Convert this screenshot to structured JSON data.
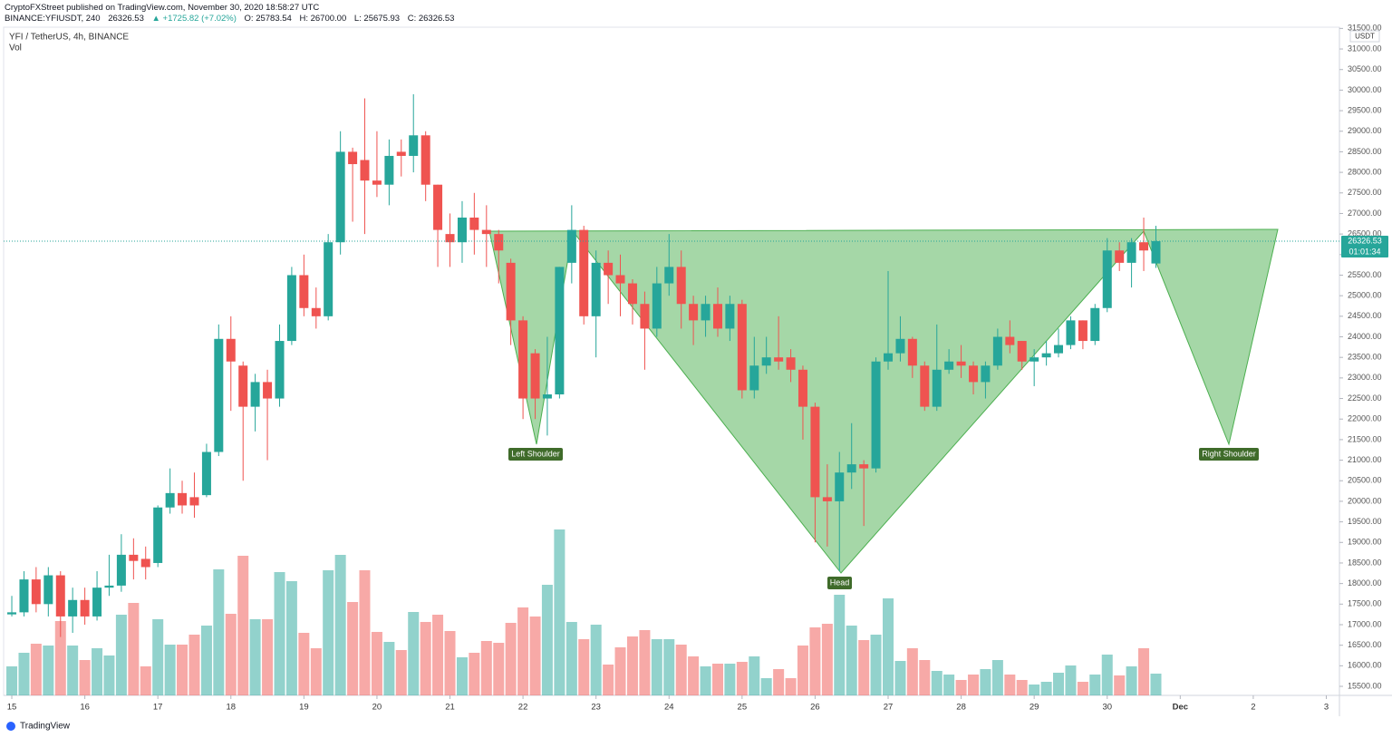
{
  "header": {
    "publisher": "CryptoFXStreet published on TradingView.com, November 30, 2020 18:58:27 UTC",
    "symbol": "BINANCE:YFIUSDT, 240",
    "last": "26326.53",
    "change": "▲ +1725.82 (+7.02%)",
    "o": "O: 25783.54",
    "h": "H: 26700.00",
    "l": "L: 25675.93",
    "c": "C: 26326.53"
  },
  "legend": {
    "title": "YFI / TetherUS, 4h, BINANCE",
    "vol": "Vol"
  },
  "axis_unit": "USDT",
  "countdown": "01:01:34",
  "brand": "TradingView",
  "chart_data": {
    "type": "candlestick",
    "annotations": [
      "Left Shoulder",
      "Head",
      "Right Shoulder"
    ],
    "up_color": "#26a69a",
    "down_color": "#ef5350",
    "xlim": [
      14.888,
      33.18
    ],
    "xticks": [
      15,
      16,
      17,
      18,
      19,
      20,
      21,
      22,
      23,
      24,
      25,
      26,
      27,
      28,
      29,
      30,
      {
        "value": 31,
        "label": "Dec"
      },
      {
        "value": 32,
        "label": "2"
      },
      {
        "value": 33,
        "label": "3"
      }
    ],
    "ylim": [
      15280,
      31530
    ],
    "yticks": [
      {
        "value": 15500,
        "label": "15500.00"
      },
      {
        "value": 16000,
        "label": "16000.00"
      },
      {
        "value": 16500,
        "label": "16500.00"
      },
      {
        "value": 17000,
        "label": "17000.00"
      },
      {
        "value": 17500,
        "label": "17500.00"
      },
      {
        "value": 18000,
        "label": "18000.00"
      },
      {
        "value": 18500,
        "label": "18500.00"
      },
      {
        "value": 19000,
        "label": "19000.00"
      },
      {
        "value": 19500,
        "label": "19500.00"
      },
      {
        "value": 20000,
        "label": "20000.00"
      },
      {
        "value": 20500,
        "label": "20500.00"
      },
      {
        "value": 21000,
        "label": "21000.00"
      },
      {
        "value": 21500,
        "label": "21500.00"
      },
      {
        "value": 22000,
        "label": "22000.00"
      },
      {
        "value": 22500,
        "label": "22500.00"
      },
      {
        "value": 23000,
        "label": "23000.00"
      },
      {
        "value": 23500,
        "label": "23500.00"
      },
      {
        "value": 24000,
        "label": "24000.00"
      },
      {
        "value": 24500,
        "label": "24500.00"
      },
      {
        "value": 25000,
        "label": "25000.00"
      },
      {
        "value": 25500,
        "label": "25500.00"
      },
      {
        "value": 26000,
        "label": "26000.00"
      },
      {
        "value": 26500,
        "label": "26500.00"
      },
      {
        "value": 27000,
        "label": "27000.00"
      },
      {
        "value": 27500,
        "label": "27500.00"
      },
      {
        "value": 28000,
        "label": "28000.00"
      },
      {
        "value": 28500,
        "label": "28500.00"
      },
      {
        "value": 29000,
        "label": "29000.00"
      },
      {
        "value": 29500,
        "label": "29500.00"
      },
      {
        "value": 30000,
        "label": "30000.00"
      },
      {
        "value": 30500,
        "label": "30500.00"
      },
      {
        "value": 31000,
        "label": "31000.00"
      },
      {
        "value": 31500,
        "label": "31500.00"
      }
    ],
    "volume_lim": [
      0,
      737
    ],
    "x": [
      15,
      15.167,
      15.333,
      15.5,
      15.667,
      15.833,
      16,
      16.167,
      16.333,
      16.5,
      16.667,
      16.833,
      17,
      17.167,
      17.333,
      17.5,
      17.667,
      17.833,
      18,
      18.167,
      18.333,
      18.5,
      18.667,
      18.833,
      19,
      19.167,
      19.333,
      19.5,
      19.667,
      19.833,
      20,
      20.167,
      20.333,
      20.5,
      20.667,
      20.833,
      21,
      21.167,
      21.333,
      21.5,
      21.667,
      21.833,
      22,
      22.167,
      22.333,
      22.5,
      22.667,
      22.833,
      23,
      23.167,
      23.333,
      23.5,
      23.667,
      23.833,
      24,
      24.167,
      24.333,
      24.5,
      24.667,
      24.833,
      25,
      25.167,
      25.333,
      25.5,
      25.667,
      25.833,
      26,
      26.167,
      26.333,
      26.5,
      26.667,
      26.833,
      27,
      27.167,
      27.333,
      27.5,
      27.667,
      27.833,
      28,
      28.167,
      28.333,
      28.5,
      28.667,
      28.833,
      29,
      29.167,
      29.333,
      29.5,
      29.667,
      29.833,
      30,
      30.167,
      30.333,
      30.5,
      30.667
    ],
    "open": [
      17250,
      17300,
      18100,
      17500,
      18200,
      17200,
      17600,
      17200,
      17900,
      17950,
      18700,
      18600,
      18500,
      19850,
      20200,
      20100,
      20150,
      21200,
      23950,
      23300,
      22300,
      22900,
      22500,
      23900,
      25500,
      24700,
      24500,
      26300,
      28500,
      28300,
      27800,
      27700,
      28500,
      28400,
      28900,
      27700,
      26500,
      26300,
      26900,
      26600,
      26500,
      25800,
      24400,
      23600,
      22500,
      22600,
      25800,
      26600,
      24500,
      25800,
      25500,
      25300,
      24800,
      24200,
      25300,
      25700,
      24800,
      24400,
      24800,
      24200,
      24800,
      22700,
      23300,
      23500,
      23500,
      23200,
      22300,
      20100,
      20000,
      20700,
      20900,
      20800,
      23400,
      23600,
      23950,
      23300,
      22300,
      23200,
      23400,
      23300,
      22900,
      23300,
      24000,
      23900,
      23400,
      23500,
      23600,
      23800,
      24400,
      23900,
      24700,
      26100,
      25800,
      26300,
      25783.54
    ],
    "high": [
      17700,
      18300,
      18400,
      18400,
      18300,
      17900,
      17900,
      18300,
      18700,
      19200,
      19100,
      18900,
      19900,
      20800,
      20500,
      20700,
      21400,
      24300,
      24500,
      23400,
      23100,
      23200,
      24300,
      25700,
      26000,
      25200,
      26500,
      29000,
      28600,
      29800,
      29000,
      28800,
      28800,
      29900,
      29000,
      27700,
      27000,
      27300,
      27500,
      27200,
      26600,
      25900,
      24500,
      23700,
      24000,
      25700,
      27200,
      26700,
      26100,
      26100,
      26000,
      25400,
      25100,
      25700,
      26500,
      26100,
      25000,
      25000,
      25200,
      25000,
      24900,
      24000,
      24000,
      24500,
      23700,
      23300,
      22400,
      20900,
      21200,
      21900,
      21000,
      23500,
      25600,
      24500,
      24000,
      23400,
      24300,
      23700,
      23800,
      23400,
      23400,
      24200,
      24400,
      23900,
      23700,
      23900,
      24200,
      24500,
      24400,
      24800,
      26400,
      26300,
      26400,
      26900,
      26700
    ],
    "low": [
      17200,
      17200,
      17300,
      17200,
      16700,
      16800,
      17000,
      17100,
      17700,
      17800,
      18100,
      18100,
      18400,
      19700,
      19700,
      19600,
      20100,
      21100,
      22200,
      20500,
      21700,
      21000,
      22300,
      23800,
      24500,
      24200,
      24400,
      26000,
      26800,
      26500,
      27400,
      27200,
      27900,
      28000,
      27300,
      25700,
      25700,
      25800,
      26000,
      25700,
      25300,
      23800,
      22000,
      22000,
      21600,
      22500,
      25300,
      24300,
      23500,
      24800,
      24500,
      24300,
      23200,
      24000,
      25000,
      24200,
      23800,
      24000,
      24000,
      23900,
      22500,
      22500,
      23100,
      23200,
      22900,
      21500,
      19000,
      18900,
      18300,
      20300,
      19400,
      20700,
      23200,
      23400,
      23000,
      22200,
      22200,
      23100,
      23000,
      22600,
      22500,
      23200,
      23600,
      23200,
      22800,
      23300,
      23500,
      23700,
      23700,
      23800,
      24600,
      25600,
      25200,
      25600,
      25675.93
    ],
    "close": [
      17300,
      18100,
      17500,
      18200,
      17200,
      17600,
      17200,
      17900,
      17950,
      18700,
      18550,
      18400,
      19850,
      20200,
      19900,
      19900,
      21200,
      23950,
      23400,
      22300,
      22900,
      22500,
      23900,
      25500,
      24700,
      24500,
      26300,
      28500,
      28200,
      27800,
      27700,
      28400,
      28400,
      28900,
      27700,
      26600,
      26300,
      26900,
      26600,
      26500,
      26100,
      24400,
      22500,
      22500,
      22600,
      25700,
      26600,
      24500,
      25800,
      25500,
      25300,
      24800,
      24200,
      25300,
      25700,
      24800,
      24400,
      24800,
      24200,
      24800,
      22700,
      23300,
      23500,
      23400,
      23200,
      22300,
      20100,
      20000,
      20700,
      20900,
      20800,
      23400,
      23600,
      23950,
      23300,
      22300,
      23200,
      23400,
      23300,
      22900,
      23300,
      24000,
      23800,
      23400,
      23500,
      23600,
      23800,
      24400,
      23900,
      24700,
      26100,
      25800,
      26300,
      26100,
      26326.53
    ],
    "volume": [
      32,
      47,
      57,
      55,
      82,
      55,
      39,
      52,
      44,
      89,
      102,
      32,
      84,
      56,
      56,
      67,
      77,
      139,
      90,
      154,
      84,
      84,
      136,
      126,
      69,
      52,
      138,
      155,
      103,
      138,
      70,
      59,
      50,
      92,
      81,
      89,
      71,
      42,
      47,
      60,
      58,
      80,
      97,
      87,
      122,
      183,
      81,
      62,
      78,
      34,
      53,
      65,
      72,
      62,
      62,
      56,
      43,
      32,
      35,
      35,
      37,
      43,
      19,
      29,
      19,
      55,
      75,
      79,
      111,
      77,
      61,
      67,
      107,
      38,
      52,
      39,
      27,
      23,
      17,
      23,
      29,
      39,
      23,
      17,
      12,
      15,
      25,
      33,
      15,
      23,
      45,
      22,
      32,
      52,
      24
    ]
  }
}
